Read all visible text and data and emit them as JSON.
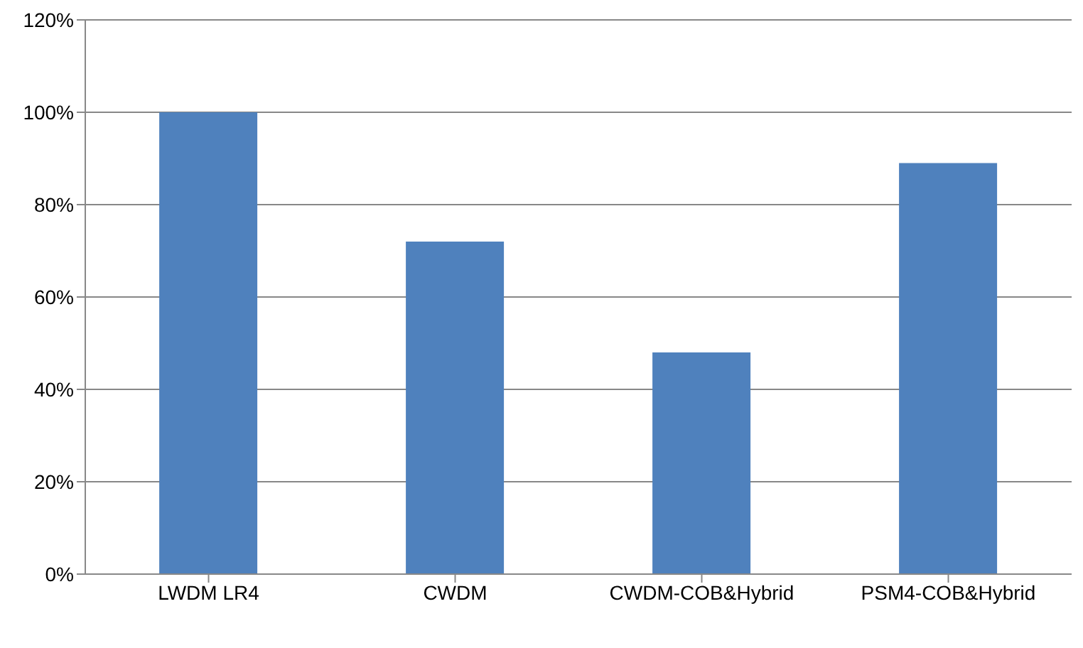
{
  "chart_data": {
    "type": "bar",
    "categories": [
      "LWDM LR4",
      "CWDM",
      "CWDM-COB&Hybrid",
      "PSM4-COB&Hybrid"
    ],
    "values": [
      100,
      72,
      48,
      89
    ],
    "color": "#4f81bd",
    "ylim": [
      0,
      120
    ],
    "yticks": [
      {
        "value": 0,
        "label": "0%"
      },
      {
        "value": 20,
        "label": "20%"
      },
      {
        "value": 40,
        "label": "40%"
      },
      {
        "value": 60,
        "label": "60%"
      },
      {
        "value": 80,
        "label": "80%"
      },
      {
        "value": 100,
        "label": "100%"
      },
      {
        "value": 120,
        "label": "120%"
      }
    ],
    "grid": "y",
    "legend": false
  }
}
